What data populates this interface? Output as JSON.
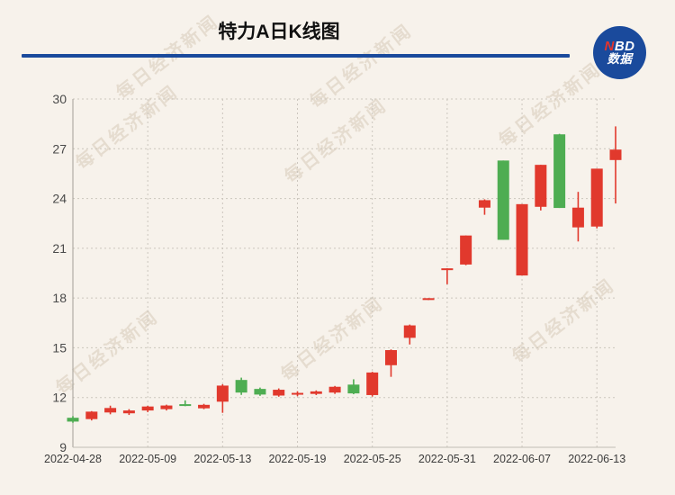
{
  "header": {
    "title": "特力A日K线图",
    "divider_color": "#1A4A9C",
    "logo": {
      "n": "N",
      "bd": "BD",
      "line2": "数据",
      "bg_color": "#1A4A9C",
      "n_color": "#E5342B"
    }
  },
  "watermark": {
    "text": "每日经济新闻"
  },
  "chart_data": {
    "type": "candlestick",
    "title": "特力A日K线图",
    "convention": "CN: red = close >= open (up), green = close < open (down)",
    "up_color": "#E1392D",
    "down_color": "#4EAD52",
    "grid": true,
    "grid_color": "#CBC6BD",
    "axis_color": "#A39F97",
    "label_color": "#3C3C3C",
    "ylim": [
      9,
      30
    ],
    "y_ticks": [
      9,
      12,
      15,
      18,
      21,
      24,
      27,
      30
    ],
    "x_tick_indices": [
      0,
      4,
      8,
      12,
      16,
      20,
      24,
      28
    ],
    "x_tick_labels": [
      "2022-04-28",
      "2022-05-09",
      "2022-05-13",
      "2022-05-19",
      "2022-05-25",
      "2022-05-31",
      "2022-06-07",
      "2022-06-13"
    ],
    "series": [
      {
        "date": "2022-04-28",
        "open": 10.78,
        "close": 10.55,
        "high": 10.88,
        "low": 10.48
      },
      {
        "date": "2022-04-29",
        "open": 10.7,
        "close": 11.15,
        "high": 11.18,
        "low": 10.62
      },
      {
        "date": "2022-05-05",
        "open": 11.1,
        "close": 11.37,
        "high": 11.51,
        "low": 10.99
      },
      {
        "date": "2022-05-06",
        "open": 11.05,
        "close": 11.22,
        "high": 11.3,
        "low": 10.95
      },
      {
        "date": "2022-05-09",
        "open": 11.22,
        "close": 11.46,
        "high": 11.5,
        "low": 11.12
      },
      {
        "date": "2022-05-10",
        "open": 11.3,
        "close": 11.52,
        "high": 11.57,
        "low": 11.22
      },
      {
        "date": "2022-05-11",
        "open": 11.6,
        "close": 11.52,
        "high": 11.83,
        "low": 11.48
      },
      {
        "date": "2022-05-12",
        "open": 11.35,
        "close": 11.56,
        "high": 11.62,
        "low": 11.3
      },
      {
        "date": "2022-05-13",
        "open": 11.75,
        "close": 12.72,
        "high": 12.8,
        "low": 11.08
      },
      {
        "date": "2022-05-16",
        "open": 13.06,
        "close": 12.3,
        "high": 13.2,
        "low": 12.16
      },
      {
        "date": "2022-05-17",
        "open": 12.52,
        "close": 12.18,
        "high": 12.6,
        "low": 12.1
      },
      {
        "date": "2022-05-18",
        "open": 12.12,
        "close": 12.47,
        "high": 12.55,
        "low": 12.05
      },
      {
        "date": "2022-05-19",
        "open": 12.2,
        "close": 12.28,
        "high": 12.38,
        "low": 12.08
      },
      {
        "date": "2022-05-20",
        "open": 12.22,
        "close": 12.37,
        "high": 12.43,
        "low": 12.15
      },
      {
        "date": "2022-05-23",
        "open": 12.3,
        "close": 12.65,
        "high": 12.7,
        "low": 12.22
      },
      {
        "date": "2022-05-24",
        "open": 12.78,
        "close": 12.25,
        "high": 13.1,
        "low": 12.2
      },
      {
        "date": "2022-05-25",
        "open": 12.15,
        "close": 13.51,
        "high": 13.55,
        "low": 12.06
      },
      {
        "date": "2022-05-26",
        "open": 13.95,
        "close": 14.86,
        "high": 14.9,
        "low": 13.25
      },
      {
        "date": "2022-05-27",
        "open": 15.6,
        "close": 16.35,
        "high": 16.4,
        "low": 15.2
      },
      {
        "date": "2022-05-30",
        "open": 17.99,
        "close": 17.99,
        "high": 17.99,
        "low": 17.88
      },
      {
        "date": "2022-05-31",
        "open": 19.75,
        "close": 19.79,
        "high": 19.79,
        "low": 18.83
      },
      {
        "date": "2022-06-01",
        "open": 20.02,
        "close": 21.77,
        "high": 21.77,
        "low": 19.98
      },
      {
        "date": "2022-06-02",
        "open": 23.45,
        "close": 23.9,
        "high": 23.95,
        "low": 23.02
      },
      {
        "date": "2022-06-06",
        "open": 26.29,
        "close": 21.51,
        "high": 26.29,
        "low": 21.51
      },
      {
        "date": "2022-06-07",
        "open": 19.36,
        "close": 23.66,
        "high": 23.66,
        "low": 19.36
      },
      {
        "date": "2022-06-08",
        "open": 23.5,
        "close": 26.03,
        "high": 26.03,
        "low": 23.28
      },
      {
        "date": "2022-06-09",
        "open": 27.87,
        "close": 23.43,
        "high": 27.9,
        "low": 23.43
      },
      {
        "date": "2022-06-10",
        "open": 22.26,
        "close": 23.45,
        "high": 24.4,
        "low": 21.41
      },
      {
        "date": "2022-06-13",
        "open": 22.31,
        "close": 25.8,
        "high": 25.8,
        "low": 22.2
      },
      {
        "date": "2022-06-14",
        "open": 26.32,
        "close": 26.95,
        "high": 28.35,
        "low": 23.7
      }
    ]
  }
}
